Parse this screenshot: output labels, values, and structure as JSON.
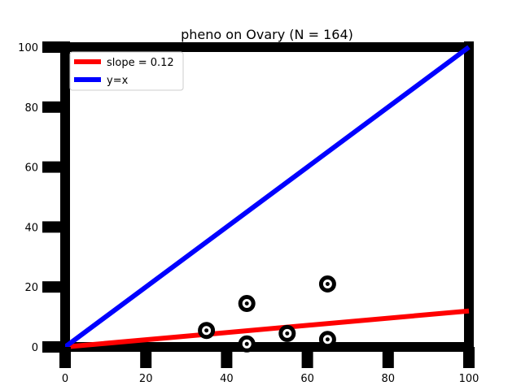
{
  "chart_data": {
    "type": "scatter",
    "title": "pheno on Ovary (N = 164)",
    "xlabel": "",
    "ylabel": "",
    "xlim": [
      0,
      100
    ],
    "ylim": [
      0,
      100
    ],
    "xticks": [
      "0",
      "20",
      "40",
      "60",
      "80",
      "100"
    ],
    "yticks": [
      "0",
      "20",
      "40",
      "60",
      "80",
      "100"
    ],
    "points": [
      {
        "x": 35,
        "y": 5.5
      },
      {
        "x": 45,
        "y": 14.5
      },
      {
        "x": 45,
        "y": 1.0
      },
      {
        "x": 55,
        "y": 4.5
      },
      {
        "x": 65,
        "y": 21.0
      },
      {
        "x": 65,
        "y": 2.5
      }
    ],
    "series": [
      {
        "name": "slope = 0.12",
        "color": "#ff0000",
        "slope": 0.12,
        "intercept": 0
      },
      {
        "name": "y=x",
        "color": "#0000ff",
        "x": [
          0,
          100
        ],
        "y": [
          0,
          100
        ]
      }
    ],
    "legend_position": "top-left",
    "grid": false
  }
}
